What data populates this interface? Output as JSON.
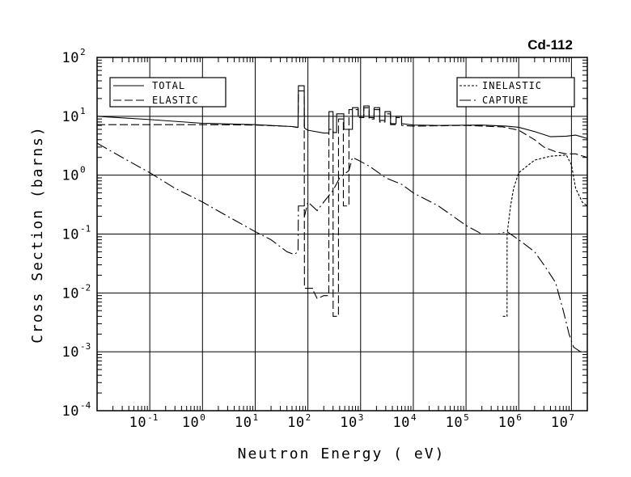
{
  "chart_data": {
    "type": "line",
    "title": "Cd-112",
    "xlabel": "Neutron Energy ( eV)",
    "ylabel": "Cross Section (barns)",
    "x_scale": "log",
    "y_scale": "log",
    "xlim": [
      0.01,
      20000000
    ],
    "ylim": [
      0.0001,
      100
    ],
    "grid": true,
    "x_ticks": [
      {
        "base": "10",
        "exp": "-1",
        "value": 0.1
      },
      {
        "base": "10",
        "exp": "0",
        "value": 1
      },
      {
        "base": "10",
        "exp": "1",
        "value": 10
      },
      {
        "base": "10",
        "exp": "2",
        "value": 100
      },
      {
        "base": "10",
        "exp": "3",
        "value": 1000
      },
      {
        "base": "10",
        "exp": "4",
        "value": 10000
      },
      {
        "base": "10",
        "exp": "5",
        "value": 100000
      },
      {
        "base": "10",
        "exp": "6",
        "value": 1000000
      },
      {
        "base": "10",
        "exp": "7",
        "value": 10000000
      }
    ],
    "y_ticks": [
      {
        "base": "10",
        "exp": "2",
        "value": 100
      },
      {
        "base": "10",
        "exp": "1",
        "value": 10
      },
      {
        "base": "10",
        "exp": "0",
        "value": 1
      },
      {
        "base": "10",
        "exp": "-1",
        "value": 0.1
      },
      {
        "base": "10",
        "exp": "-2",
        "value": 0.01
      },
      {
        "base": "10",
        "exp": "-3",
        "value": 0.001
      },
      {
        "base": "10",
        "exp": "-4",
        "value": 0.0001
      }
    ],
    "legends": [
      {
        "placement": "top-left",
        "entries": [
          {
            "label": "TOTAL",
            "series": 0
          },
          {
            "label": "ELASTIC",
            "series": 1
          }
        ]
      },
      {
        "placement": "top-right",
        "entries": [
          {
            "label": "INELASTIC",
            "series": 2
          },
          {
            "label": "CAPTURE",
            "series": 3
          }
        ]
      }
    ],
    "series": [
      {
        "name": "TOTAL",
        "dash": "solid",
        "points": [
          [
            0.01,
            10
          ],
          [
            0.1,
            8.8
          ],
          [
            1,
            7.6
          ],
          [
            10,
            7.2
          ],
          [
            50,
            6.7
          ],
          [
            65,
            6.5
          ],
          [
            66,
            33
          ],
          [
            85,
            33
          ],
          [
            86,
            6.3
          ],
          [
            100,
            5.8
          ],
          [
            200,
            5.2
          ],
          [
            250,
            5.2
          ],
          [
            251,
            12
          ],
          [
            300,
            12
          ],
          [
            301,
            5.3
          ],
          [
            350,
            5.3
          ],
          [
            351,
            11
          ],
          [
            480,
            11
          ],
          [
            481,
            6
          ],
          [
            700,
            6
          ],
          [
            701,
            14
          ],
          [
            900,
            14
          ],
          [
            901,
            10
          ],
          [
            1150,
            10
          ],
          [
            1151,
            15
          ],
          [
            1450,
            15
          ],
          [
            1451,
            9.5
          ],
          [
            1800,
            9.5
          ],
          [
            1801,
            14
          ],
          [
            2300,
            14
          ],
          [
            2301,
            8.5
          ],
          [
            2900,
            8.5
          ],
          [
            2901,
            12
          ],
          [
            3700,
            12
          ],
          [
            3701,
            7.5
          ],
          [
            4700,
            7.5
          ],
          [
            4701,
            10
          ],
          [
            6000,
            10
          ],
          [
            6001,
            7.5
          ],
          [
            10000,
            7.1
          ],
          [
            30000,
            7
          ],
          [
            200000,
            7.1
          ],
          [
            600000,
            6.8
          ],
          [
            1000000,
            6.5
          ],
          [
            2000000,
            5.5
          ],
          [
            4000000,
            4.5
          ],
          [
            8000000,
            4.6
          ],
          [
            12000000,
            4.8
          ],
          [
            20000000,
            4.2
          ]
        ]
      },
      {
        "name": "ELASTIC",
        "dash": "10,4",
        "points": [
          [
            0.01,
            7.2
          ],
          [
            0.1,
            7.2
          ],
          [
            1,
            7.2
          ],
          [
            10,
            7.1
          ],
          [
            50,
            6.7
          ],
          [
            65,
            6.4
          ],
          [
            66,
            27
          ],
          [
            85,
            27
          ],
          [
            86,
            0.012
          ],
          [
            125,
            0.012
          ],
          [
            126,
            0.011
          ],
          [
            150,
            0.008
          ],
          [
            200,
            0.009
          ],
          [
            249,
            0.009
          ],
          [
            250,
            6
          ],
          [
            300,
            6
          ],
          [
            301,
            0.004
          ],
          [
            380,
            0.004
          ],
          [
            381,
            9
          ],
          [
            470,
            9
          ],
          [
            471,
            0.3
          ],
          [
            600,
            0.3
          ],
          [
            601,
            13
          ],
          [
            900,
            13
          ],
          [
            901,
            9.5
          ],
          [
            1150,
            9.5
          ],
          [
            1151,
            14
          ],
          [
            1450,
            14
          ],
          [
            1451,
            9
          ],
          [
            1800,
            9
          ],
          [
            1801,
            13
          ],
          [
            2300,
            13
          ],
          [
            2301,
            8
          ],
          [
            2900,
            8
          ],
          [
            2901,
            11
          ],
          [
            3700,
            11
          ],
          [
            3701,
            7.2
          ],
          [
            4700,
            7.2
          ],
          [
            4701,
            9.5
          ],
          [
            6000,
            9.5
          ],
          [
            6001,
            7
          ],
          [
            10000,
            6.8
          ],
          [
            100000,
            7
          ],
          [
            500000,
            6.6
          ],
          [
            1000000,
            5.8
          ],
          [
            2000000,
            4
          ],
          [
            3000000,
            3
          ],
          [
            5000000,
            2.5
          ],
          [
            8000000,
            2.3
          ],
          [
            12000000,
            2.3
          ],
          [
            20000000,
            2
          ]
        ]
      },
      {
        "name": "INELASTIC",
        "dash": "3,2",
        "points": [
          [
            500000,
            0.004
          ],
          [
            600000,
            0.004
          ],
          [
            601000,
            0.1
          ],
          [
            700000,
            0.3
          ],
          [
            800000,
            0.6
          ],
          [
            1000000,
            1.1
          ],
          [
            2000000,
            1.8
          ],
          [
            4000000,
            2.1
          ],
          [
            8000000,
            2.2
          ],
          [
            10000000,
            1.5
          ],
          [
            12000000,
            0.6
          ],
          [
            16000000,
            0.35
          ],
          [
            20000000,
            0.3
          ]
        ]
      },
      {
        "name": "CAPTURE",
        "dash": "14,4,2,4",
        "points": [
          [
            0.01,
            3.5
          ],
          [
            0.03,
            2
          ],
          [
            0.1,
            1.1
          ],
          [
            0.3,
            0.6
          ],
          [
            1,
            0.35
          ],
          [
            3,
            0.2
          ],
          [
            10,
            0.11
          ],
          [
            20,
            0.08
          ],
          [
            40,
            0.05
          ],
          [
            55,
            0.045
          ],
          [
            65,
            0.05
          ],
          [
            66,
            0.3
          ],
          [
            85,
            0.3
          ],
          [
            86,
            0.2
          ],
          [
            100,
            0.35
          ],
          [
            150,
            0.25
          ],
          [
            200,
            0.35
          ],
          [
            250,
            0.45
          ],
          [
            300,
            0.55
          ],
          [
            400,
            0.9
          ],
          [
            600,
            1.2
          ],
          [
            700,
            2
          ],
          [
            900,
            1.8
          ],
          [
            1500,
            1.4
          ],
          [
            3000,
            0.9
          ],
          [
            6000,
            0.7
          ],
          [
            10000,
            0.5
          ],
          [
            30000,
            0.3
          ],
          [
            100000,
            0.14
          ],
          [
            200000,
            0.1
          ],
          [
            400000,
            0.1
          ],
          [
            600000,
            0.11
          ],
          [
            1000000,
            0.08
          ],
          [
            2000000,
            0.05
          ],
          [
            3000000,
            0.03
          ],
          [
            5000000,
            0.015
          ],
          [
            7000000,
            0.005
          ],
          [
            9000000,
            0.002
          ],
          [
            11000000,
            0.0012
          ],
          [
            15000000,
            0.001
          ],
          [
            20000000,
            0.001
          ]
        ]
      }
    ]
  }
}
